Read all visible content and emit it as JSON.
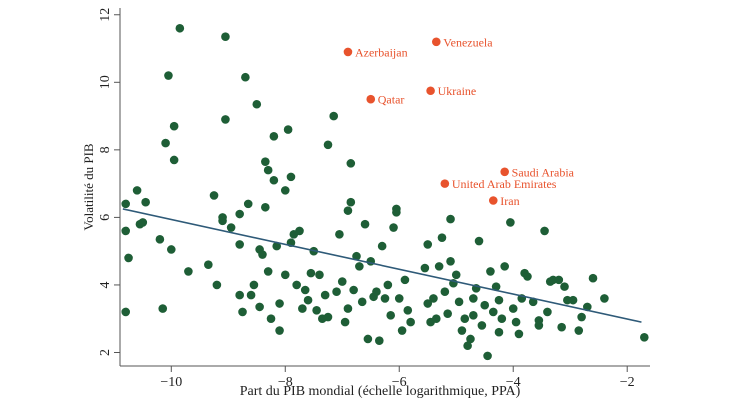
{
  "chart_data": {
    "type": "scatter",
    "title": "",
    "xlabel": "Part du PIB mondial (échelle logarithmique, PPA)",
    "ylabel": "Volatilité du PIB",
    "xlim": [
      -10.9,
      -1.6
    ],
    "ylim": [
      1.6,
      12.2
    ],
    "xticks": [
      -10,
      -8,
      -6,
      -4,
      -2
    ],
    "yticks": [
      2,
      4,
      6,
      8,
      10,
      12
    ],
    "grid": false,
    "legend": "none",
    "colors": {
      "points": "#1e5e36",
      "highlight": "#e8532d",
      "trend": "#2e5a78",
      "axis": "#555555"
    },
    "series": [
      {
        "points": [
          [
            -10.8,
            6.4
          ],
          [
            -10.8,
            5.6
          ],
          [
            -10.75,
            4.8
          ],
          [
            -10.8,
            3.2
          ],
          [
            -10.6,
            6.8
          ],
          [
            -10.55,
            5.8
          ],
          [
            -10.5,
            5.85
          ],
          [
            -10.45,
            6.45
          ],
          [
            -10.2,
            5.35
          ],
          [
            -10.15,
            3.3
          ],
          [
            -10.1,
            8.2
          ],
          [
            -10.05,
            10.2
          ],
          [
            -10.0,
            5.05
          ],
          [
            -9.95,
            8.7
          ],
          [
            -9.95,
            7.7
          ],
          [
            -9.85,
            11.6
          ],
          [
            -9.7,
            4.4
          ],
          [
            -9.35,
            4.6
          ],
          [
            -9.25,
            6.65
          ],
          [
            -9.2,
            4.0
          ],
          [
            -9.1,
            5.9
          ],
          [
            -9.1,
            6.0
          ],
          [
            -9.05,
            8.9
          ],
          [
            -9.05,
            11.35
          ],
          [
            -8.95,
            5.7
          ],
          [
            -8.8,
            6.1
          ],
          [
            -8.8,
            5.2
          ],
          [
            -8.75,
            3.2
          ],
          [
            -8.7,
            10.15
          ],
          [
            -8.65,
            6.4
          ],
          [
            -8.6,
            3.7
          ],
          [
            -8.55,
            4.0
          ],
          [
            -8.5,
            9.35
          ],
          [
            -8.45,
            5.05
          ],
          [
            -8.45,
            3.35
          ],
          [
            -8.4,
            4.9
          ],
          [
            -8.35,
            7.65
          ],
          [
            -8.35,
            6.3
          ],
          [
            -8.3,
            7.4
          ],
          [
            -8.3,
            4.4
          ],
          [
            -8.25,
            3.0
          ],
          [
            -8.2,
            8.4
          ],
          [
            -8.2,
            7.1
          ],
          [
            -8.15,
            5.15
          ],
          [
            -8.1,
            3.45
          ],
          [
            -8.1,
            2.65
          ],
          [
            -8.0,
            6.8
          ],
          [
            -8.0,
            4.3
          ],
          [
            -7.95,
            8.6
          ],
          [
            -7.9,
            7.2
          ],
          [
            -7.9,
            5.25
          ],
          [
            -7.85,
            5.5
          ],
          [
            -7.8,
            4.0
          ],
          [
            -7.75,
            5.6
          ],
          [
            -7.7,
            3.3
          ],
          [
            -7.65,
            3.85
          ],
          [
            -7.6,
            3.55
          ],
          [
            -7.55,
            4.35
          ],
          [
            -7.5,
            5.0
          ],
          [
            -7.45,
            3.25
          ],
          [
            -7.4,
            4.3
          ],
          [
            -7.35,
            3.0
          ],
          [
            -7.3,
            3.7
          ],
          [
            -7.25,
            8.15
          ],
          [
            -7.15,
            9.0
          ],
          [
            -7.1,
            3.8
          ],
          [
            -7.05,
            5.5
          ],
          [
            -7.0,
            4.1
          ],
          [
            -6.95,
            2.9
          ],
          [
            -6.9,
            6.2
          ],
          [
            -6.85,
            6.45
          ],
          [
            -6.85,
            7.6
          ],
          [
            -6.8,
            3.85
          ],
          [
            -6.75,
            4.85
          ],
          [
            -6.7,
            4.55
          ],
          [
            -6.65,
            3.5
          ],
          [
            -6.6,
            5.8
          ],
          [
            -6.55,
            2.4
          ],
          [
            -6.5,
            4.7
          ],
          [
            -6.45,
            3.65
          ],
          [
            -6.4,
            3.8
          ],
          [
            -6.35,
            2.35
          ],
          [
            -6.3,
            5.15
          ],
          [
            -6.25,
            3.6
          ],
          [
            -6.2,
            4.0
          ],
          [
            -6.15,
            3.1
          ],
          [
            -6.1,
            5.7
          ],
          [
            -6.05,
            6.15
          ],
          [
            -6.05,
            6.25
          ],
          [
            -6.0,
            3.6
          ],
          [
            -5.95,
            2.65
          ],
          [
            -5.9,
            4.15
          ],
          [
            -5.85,
            3.25
          ],
          [
            -5.55,
            4.5
          ],
          [
            -5.5,
            3.45
          ],
          [
            -5.5,
            5.2
          ],
          [
            -5.45,
            2.9
          ],
          [
            -5.4,
            3.6
          ],
          [
            -5.35,
            3.0
          ],
          [
            -5.3,
            4.55
          ],
          [
            -5.25,
            5.4
          ],
          [
            -5.2,
            3.8
          ],
          [
            -5.15,
            3.15
          ],
          [
            -5.1,
            5.95
          ],
          [
            -5.1,
            4.7
          ],
          [
            -5.05,
            4.05
          ],
          [
            -5.0,
            4.3
          ],
          [
            -4.95,
            3.5
          ],
          [
            -4.9,
            2.65
          ],
          [
            -4.85,
            3.0
          ],
          [
            -4.8,
            2.2
          ],
          [
            -4.75,
            2.4
          ],
          [
            -4.7,
            3.6
          ],
          [
            -4.65,
            3.9
          ],
          [
            -4.6,
            5.3
          ],
          [
            -4.55,
            2.8
          ],
          [
            -4.5,
            3.4
          ],
          [
            -4.45,
            1.9
          ],
          [
            -4.4,
            4.4
          ],
          [
            -4.35,
            3.2
          ],
          [
            -4.3,
            3.95
          ],
          [
            -4.25,
            3.55
          ],
          [
            -4.2,
            3.0
          ],
          [
            -4.15,
            4.55
          ],
          [
            -4.05,
            5.85
          ],
          [
            -4.0,
            3.3
          ],
          [
            -3.95,
            2.9
          ],
          [
            -3.9,
            2.55
          ],
          [
            -3.85,
            3.6
          ],
          [
            -3.8,
            4.35
          ],
          [
            -3.75,
            4.25
          ],
          [
            -3.65,
            3.5
          ],
          [
            -3.55,
            2.8
          ],
          [
            -3.45,
            5.6
          ],
          [
            -3.4,
            3.2
          ],
          [
            -3.35,
            4.1
          ],
          [
            -3.3,
            4.15
          ],
          [
            -3.2,
            4.15
          ],
          [
            -3.15,
            2.75
          ],
          [
            -3.1,
            3.95
          ],
          [
            -3.05,
            3.55
          ],
          [
            -2.95,
            3.55
          ],
          [
            -2.85,
            2.65
          ],
          [
            -2.8,
            3.05
          ],
          [
            -2.7,
            3.35
          ],
          [
            -2.6,
            4.2
          ],
          [
            -2.4,
            3.6
          ],
          [
            -1.7,
            2.45
          ],
          [
            -8.8,
            3.7
          ],
          [
            -7.25,
            3.05
          ],
          [
            -4.7,
            3.1
          ],
          [
            -4.25,
            2.6
          ],
          [
            -3.55,
            2.95
          ],
          [
            -6.9,
            3.3
          ],
          [
            -5.8,
            2.9
          ]
        ]
      },
      {
        "labeled": true,
        "points": [
          {
            "x": -6.9,
            "y": 10.9,
            "label": "Azerbaijan"
          },
          {
            "x": -5.35,
            "y": 11.2,
            "label": "Venezuela"
          },
          {
            "x": -6.5,
            "y": 9.5,
            "label": "Qatar"
          },
          {
            "x": -5.45,
            "y": 9.75,
            "label": "Ukraine"
          },
          {
            "x": -4.15,
            "y": 7.35,
            "label": "Saudi Arabia"
          },
          {
            "x": -5.2,
            "y": 7.0,
            "label": "United Arab Emirates"
          },
          {
            "x": -4.35,
            "y": 6.5,
            "label": "Iran"
          }
        ]
      }
    ],
    "trendline": {
      "x1": -10.85,
      "y1": 6.25,
      "x2": -1.75,
      "y2": 2.9
    }
  }
}
